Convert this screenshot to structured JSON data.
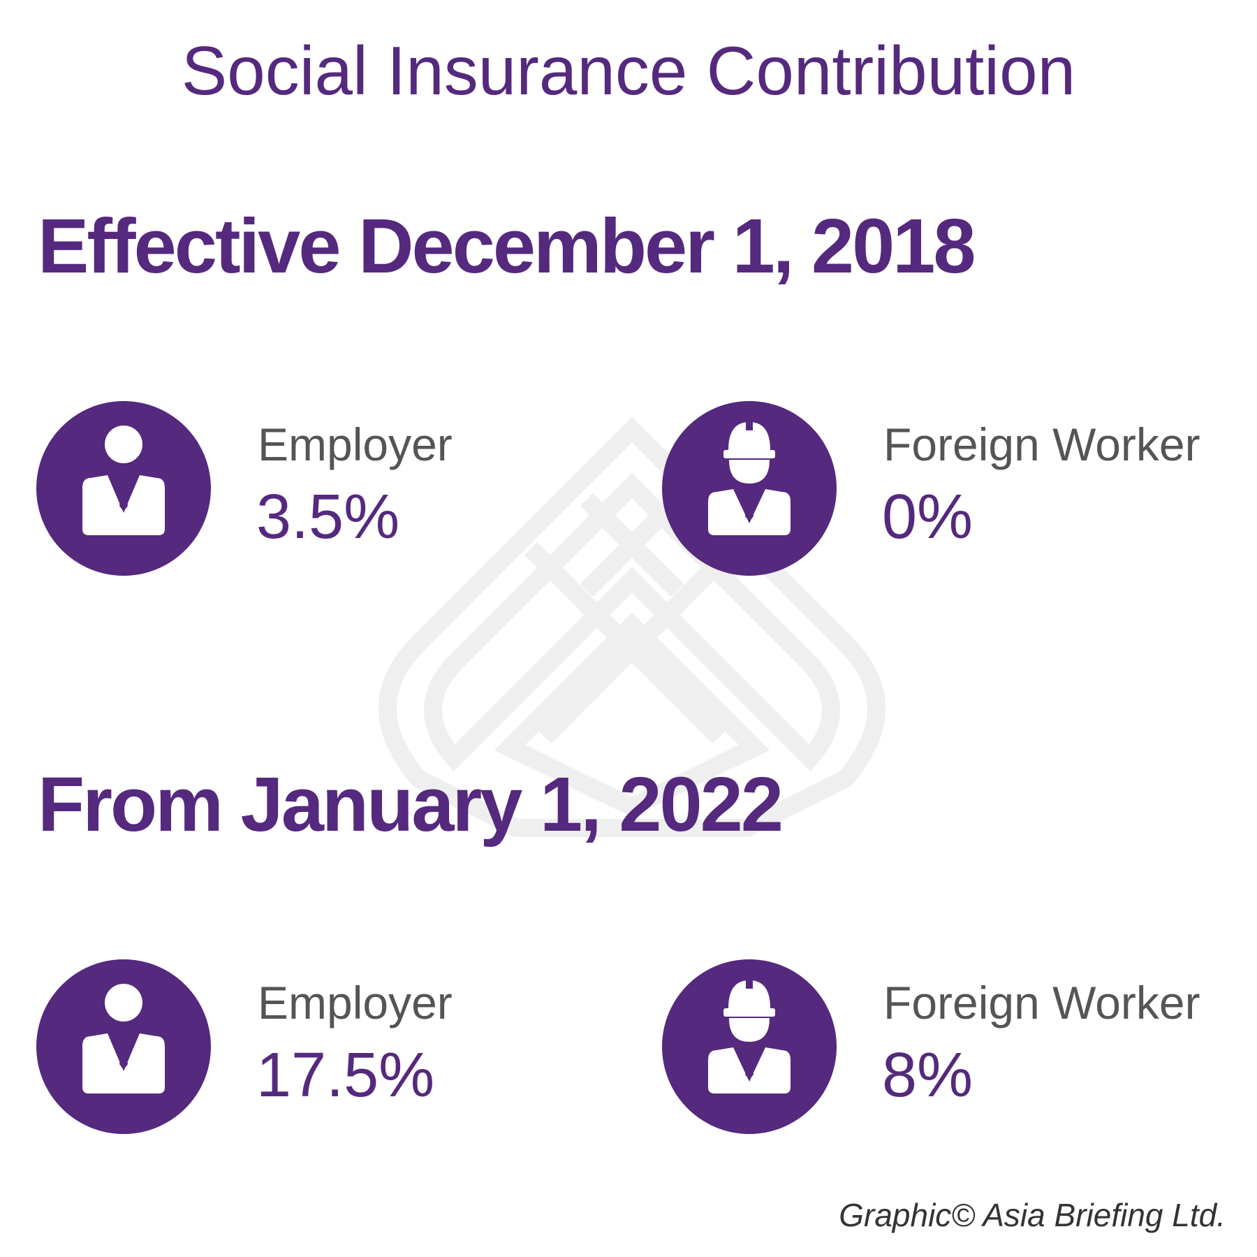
{
  "colors": {
    "accent": "#55297e",
    "label_gray": "#555555",
    "credit_text": "#333333",
    "watermark": "#efefef"
  },
  "title": "Social Insurance Contribution",
  "sections": [
    {
      "heading": "Effective December 1, 2018",
      "items": [
        {
          "icon": "businessman-icon",
          "label": "Employer",
          "value": "3.5%"
        },
        {
          "icon": "construction-worker-icon",
          "label": "Foreign Worker",
          "value": "0%"
        }
      ]
    },
    {
      "heading": "From January 1, 2022",
      "items": [
        {
          "icon": "businessman-icon",
          "label": "Employer",
          "value": "17.5%"
        },
        {
          "icon": "construction-worker-icon",
          "label": "Foreign Worker",
          "value": "8%"
        }
      ]
    }
  ],
  "credit": "Graphic© Asia Briefing Ltd."
}
